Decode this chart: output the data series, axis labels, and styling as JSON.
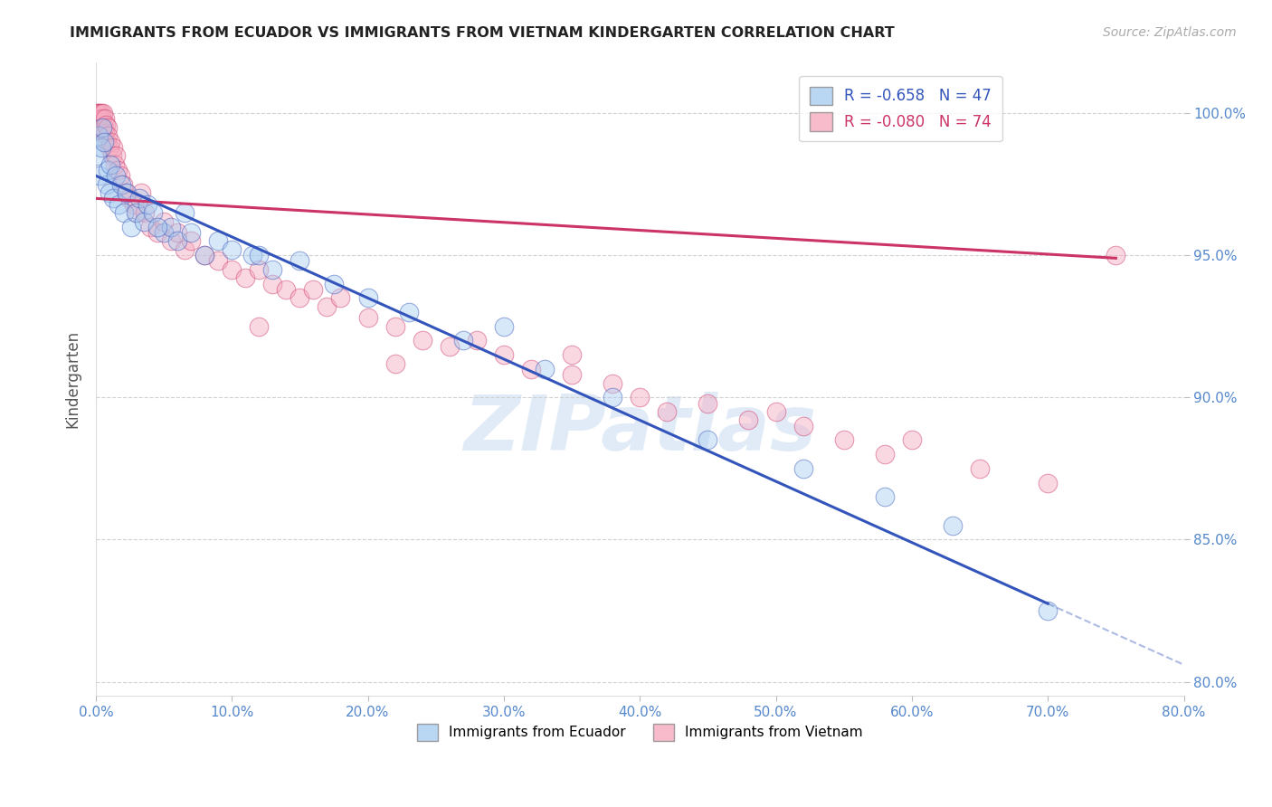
{
  "title": "IMMIGRANTS FROM ECUADOR VS IMMIGRANTS FROM VIETNAM KINDERGARTEN CORRELATION CHART",
  "source": "Source: ZipAtlas.com",
  "ylabel": "Kindergarten",
  "x_min": 0.0,
  "x_max": 80.0,
  "y_min": 79.5,
  "y_max": 101.8,
  "x_ticks": [
    0.0,
    10.0,
    20.0,
    30.0,
    40.0,
    50.0,
    60.0,
    70.0,
    80.0
  ],
  "y_ticks": [
    80.0,
    85.0,
    90.0,
    95.0,
    100.0
  ],
  "legend_R_ecuador": "-0.658",
  "legend_N_ecuador": "47",
  "legend_R_vietnam": "-0.080",
  "legend_N_vietnam": "74",
  "ecuador_color": "#a8ccf0",
  "vietnam_color": "#f5aac0",
  "ecuador_line_color": "#3355bb",
  "vietnam_line_color": "#cc3366",
  "watermark": "ZIPatlas",
  "watermark_color": "#c5d9f0",
  "ecuador_x": [
    0.1,
    0.2,
    0.3,
    0.4,
    0.5,
    0.6,
    0.8,
    0.9,
    1.0,
    1.1,
    1.3,
    1.5,
    1.7,
    1.9,
    2.1,
    2.3,
    2.6,
    2.9,
    3.2,
    3.5,
    3.8,
    4.2,
    5.0,
    5.5,
    6.0,
    7.0,
    8.0,
    9.0,
    10.0,
    11.5,
    13.0,
    15.0,
    17.5,
    20.0,
    23.0,
    27.0,
    33.0,
    38.0,
    45.0,
    52.0,
    58.0,
    63.0,
    70.0,
    4.5,
    6.5,
    12.0,
    30.0
  ],
  "ecuador_y": [
    98.5,
    99.2,
    97.8,
    98.8,
    99.5,
    99.0,
    97.5,
    98.0,
    97.2,
    98.2,
    97.0,
    97.8,
    96.8,
    97.5,
    96.5,
    97.2,
    96.0,
    96.5,
    97.0,
    96.2,
    96.8,
    96.5,
    95.8,
    96.0,
    95.5,
    95.8,
    95.0,
    95.5,
    95.2,
    95.0,
    94.5,
    94.8,
    94.0,
    93.5,
    93.0,
    92.0,
    91.0,
    90.0,
    88.5,
    87.5,
    86.5,
    85.5,
    82.5,
    96.0,
    96.5,
    95.0,
    92.5
  ],
  "vietnam_x": [
    0.1,
    0.15,
    0.2,
    0.25,
    0.3,
    0.35,
    0.4,
    0.45,
    0.5,
    0.55,
    0.6,
    0.65,
    0.7,
    0.75,
    0.8,
    0.85,
    0.9,
    1.0,
    1.1,
    1.2,
    1.3,
    1.4,
    1.5,
    1.6,
    1.8,
    2.0,
    2.2,
    2.5,
    2.8,
    3.0,
    3.3,
    3.6,
    4.0,
    4.5,
    5.0,
    5.5,
    6.0,
    6.5,
    7.0,
    8.0,
    9.0,
    10.0,
    11.0,
    12.0,
    13.0,
    14.0,
    15.0,
    16.0,
    17.0,
    18.0,
    20.0,
    22.0,
    24.0,
    26.0,
    28.0,
    30.0,
    32.0,
    35.0,
    38.0,
    40.0,
    42.0,
    45.0,
    48.0,
    50.0,
    52.0,
    55.0,
    58.0,
    60.0,
    65.0,
    70.0,
    22.0,
    35.0,
    75.0,
    12.0
  ],
  "vietnam_y": [
    100.0,
    100.0,
    99.8,
    100.0,
    99.5,
    99.8,
    100.0,
    99.5,
    99.8,
    100.0,
    99.5,
    99.8,
    99.3,
    99.6,
    99.0,
    99.5,
    99.2,
    98.8,
    99.0,
    98.5,
    98.8,
    98.2,
    98.5,
    98.0,
    97.8,
    97.5,
    97.2,
    97.0,
    96.8,
    96.5,
    97.2,
    96.5,
    96.0,
    95.8,
    96.2,
    95.5,
    95.8,
    95.2,
    95.5,
    95.0,
    94.8,
    94.5,
    94.2,
    94.5,
    94.0,
    93.8,
    93.5,
    93.8,
    93.2,
    93.5,
    92.8,
    92.5,
    92.0,
    91.8,
    92.0,
    91.5,
    91.0,
    91.5,
    90.5,
    90.0,
    89.5,
    89.8,
    89.2,
    89.5,
    89.0,
    88.5,
    88.0,
    88.5,
    87.5,
    87.0,
    91.2,
    90.8,
    95.0,
    92.5
  ],
  "ec_intercept": 97.8,
  "ec_slope": -0.215,
  "viet_intercept": 97.0,
  "viet_slope": -0.028,
  "ec_solid_end": 70.0,
  "ec_dashed_end": 80.0
}
